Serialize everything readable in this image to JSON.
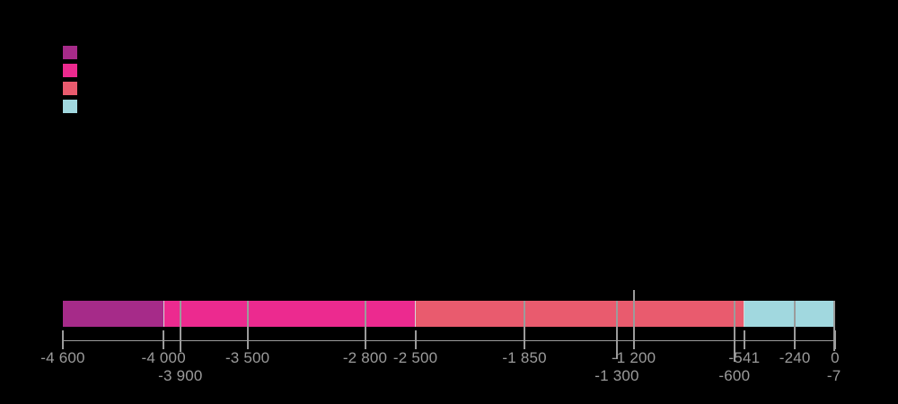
{
  "background": "#000000",
  "legend": {
    "swatches": [
      {
        "name": "swatch-1",
        "color": "#A62B89"
      },
      {
        "name": "swatch-2",
        "color": "#EC2A8F"
      },
      {
        "name": "swatch-3",
        "color": "#E95B6E"
      },
      {
        "name": "swatch-4",
        "color": "#A1D8DF"
      }
    ]
  },
  "chart_data": {
    "type": "bar",
    "subtype": "horizontal-stacked-timeline",
    "title": "",
    "axis": {
      "min": -4600,
      "max": 0,
      "line_color": "#9B9B9B",
      "label_color": "#9B9B9B",
      "labels_row1": [
        {
          "value": -4600,
          "text": "-4 600"
        },
        {
          "value": -4000,
          "text": "-4 000"
        },
        {
          "value": -3500,
          "text": "-3 500"
        },
        {
          "value": -2800,
          "text": "-2 800"
        },
        {
          "value": -2500,
          "text": "-2 500"
        },
        {
          "value": -1850,
          "text": "-1 850"
        },
        {
          "value": -1200,
          "text": "-1 200"
        },
        {
          "value": -541,
          "text": "-541"
        },
        {
          "value": -240,
          "text": "-240"
        },
        {
          "value": 0,
          "text": "0"
        }
      ],
      "labels_row2": [
        {
          "value": -3900,
          "text": "-3 900"
        },
        {
          "value": -1300,
          "text": "-1 300"
        },
        {
          "value": -600,
          "text": "-600"
        },
        {
          "value": -7,
          "text": "-7"
        }
      ]
    },
    "segments": [
      {
        "start": -4600,
        "end": -4000,
        "color": "#A62B89"
      },
      {
        "start": -4000,
        "end": -2500,
        "color": "#EC2A8F"
      },
      {
        "start": -2500,
        "end": -541,
        "color": "#E95B6E"
      },
      {
        "start": -541,
        "end": 0,
        "color": "#A1D8DF"
      }
    ],
    "boundary_ticks": [
      -4600,
      -4000,
      -2500,
      -541,
      0
    ],
    "subdivision_lines": [
      {
        "value": -3900
      },
      {
        "value": -3500
      },
      {
        "value": -2800
      },
      {
        "value": -1850
      },
      {
        "value": -1300
      },
      {
        "value": -1200,
        "extends_above_bar": true
      },
      {
        "value": -600
      },
      {
        "value": -240
      },
      {
        "value": -7
      }
    ],
    "separator_color": "#D6D6D6"
  }
}
